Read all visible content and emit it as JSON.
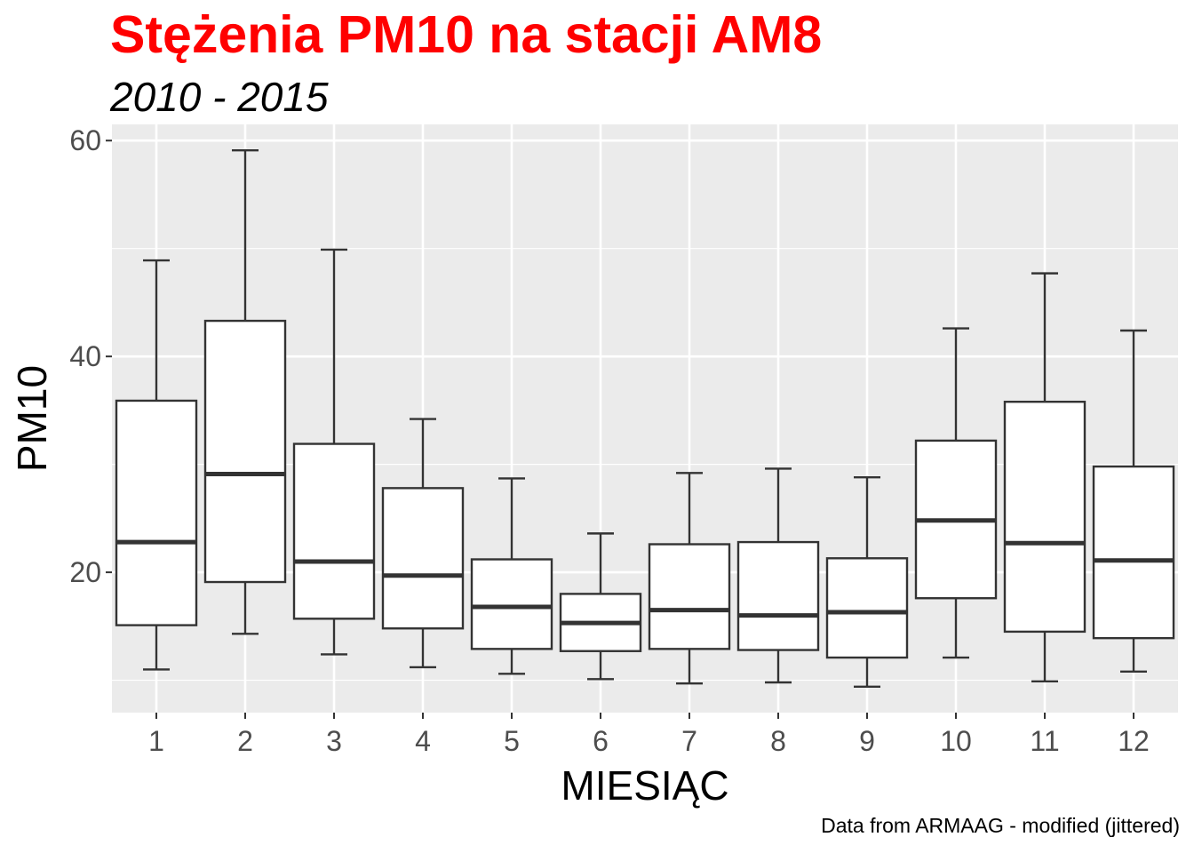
{
  "title": "Stężenia PM10 na stacji AM8",
  "subtitle": "2010 - 2015",
  "caption": "Data from ARMAAG - modified (jittered)",
  "colors": {
    "title": "#ff0000",
    "panel_background": "#ebebeb",
    "grid": "#ffffff",
    "box_fill": "#ffffff",
    "box_line": "#333333",
    "tick_label": "#4d4d4d"
  },
  "chart_data": {
    "type": "boxplot",
    "xlabel": "MIESIĄC",
    "ylabel": "PM10",
    "ylim": [
      7.0,
      61.5
    ],
    "yticks": [
      20,
      40,
      60
    ],
    "grid": true,
    "categories": [
      "1",
      "2",
      "3",
      "4",
      "5",
      "6",
      "7",
      "8",
      "9",
      "10",
      "11",
      "12"
    ],
    "boxes": [
      {
        "category": "1",
        "whisker_low": 11.0,
        "q1": 15.1,
        "median": 22.8,
        "q3": 35.9,
        "whisker_high": 48.9
      },
      {
        "category": "2",
        "whisker_low": 14.3,
        "q1": 19.1,
        "median": 29.1,
        "q3": 43.3,
        "whisker_high": 59.1
      },
      {
        "category": "3",
        "whisker_low": 12.4,
        "q1": 15.7,
        "median": 21.0,
        "q3": 31.9,
        "whisker_high": 49.9
      },
      {
        "category": "4",
        "whisker_low": 11.2,
        "q1": 14.8,
        "median": 19.7,
        "q3": 27.8,
        "whisker_high": 34.2
      },
      {
        "category": "5",
        "whisker_low": 10.6,
        "q1": 12.9,
        "median": 16.8,
        "q3": 21.2,
        "whisker_high": 28.7
      },
      {
        "category": "6",
        "whisker_low": 10.1,
        "q1": 12.7,
        "median": 15.3,
        "q3": 18.0,
        "whisker_high": 23.6
      },
      {
        "category": "7",
        "whisker_low": 9.7,
        "q1": 12.9,
        "median": 16.5,
        "q3": 22.6,
        "whisker_high": 29.2
      },
      {
        "category": "8",
        "whisker_low": 9.8,
        "q1": 12.8,
        "median": 16.0,
        "q3": 22.8,
        "whisker_high": 29.6
      },
      {
        "category": "9",
        "whisker_low": 9.4,
        "q1": 12.1,
        "median": 16.3,
        "q3": 21.3,
        "whisker_high": 28.8
      },
      {
        "category": "10",
        "whisker_low": 12.1,
        "q1": 17.6,
        "median": 24.8,
        "q3": 32.2,
        "whisker_high": 42.6
      },
      {
        "category": "11",
        "whisker_low": 9.9,
        "q1": 14.5,
        "median": 22.7,
        "q3": 35.8,
        "whisker_high": 47.7
      },
      {
        "category": "12",
        "whisker_low": 10.8,
        "q1": 13.9,
        "median": 21.1,
        "q3": 29.8,
        "whisker_high": 42.4
      }
    ]
  }
}
